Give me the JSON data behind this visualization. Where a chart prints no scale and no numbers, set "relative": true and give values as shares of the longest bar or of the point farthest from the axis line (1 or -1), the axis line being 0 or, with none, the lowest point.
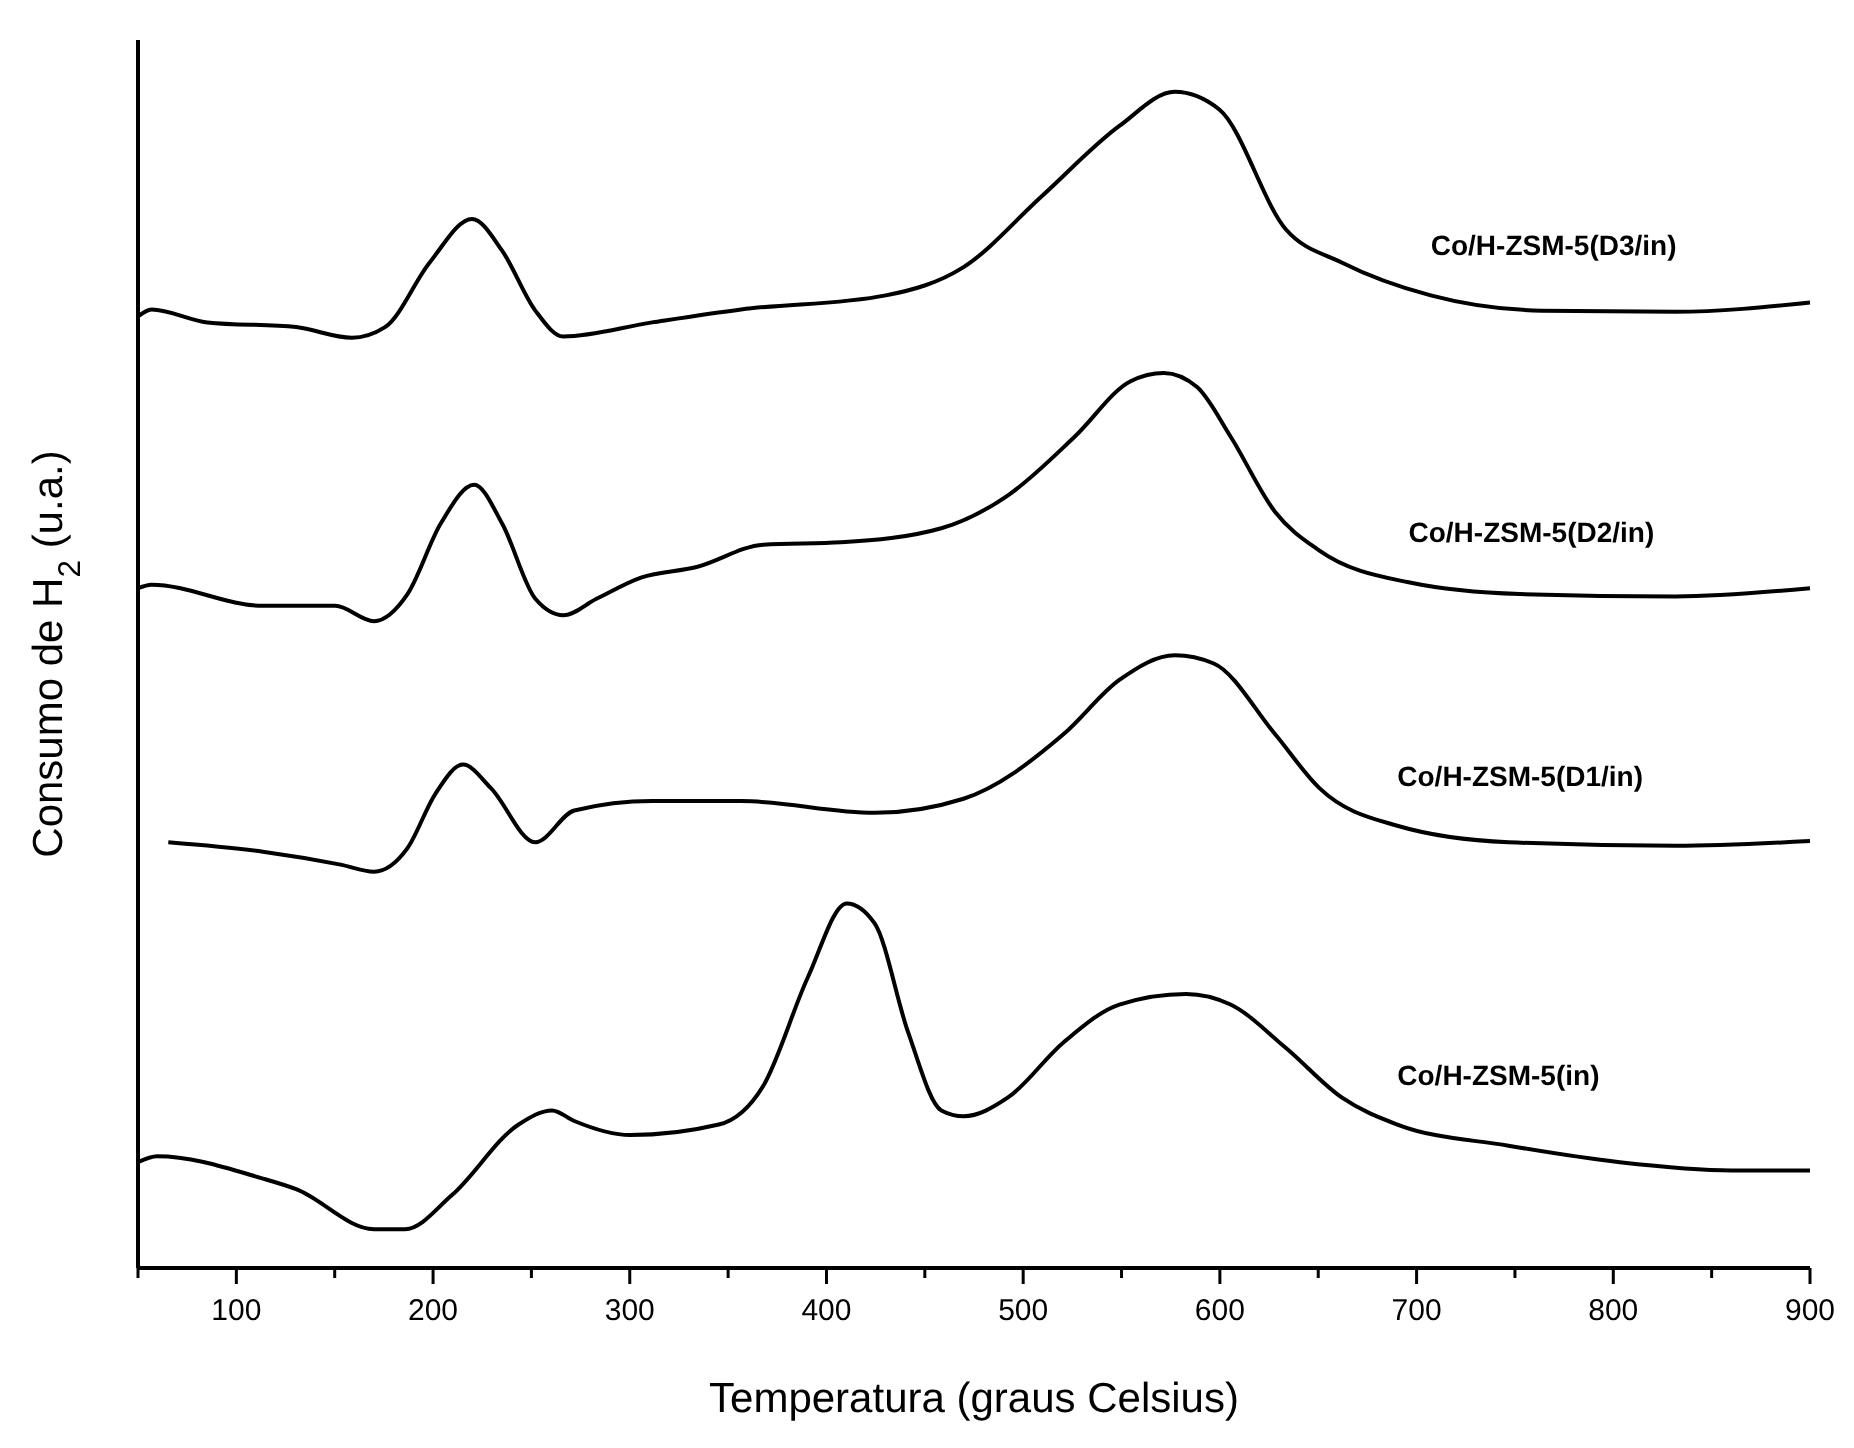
{
  "chart_data": {
    "type": "line",
    "relative": true,
    "xlabel": "Temperatura (graus Celsius)",
    "ylabel": "Consumo de H$_{2}$ (u.a.)",
    "xlim": [
      50,
      900
    ],
    "xticks": [
      {
        "value": 50,
        "label": null
      },
      100,
      {
        "value": 150,
        "label": null
      },
      200,
      {
        "value": 250,
        "label": null
      },
      300,
      {
        "value": 350,
        "label": null
      },
      400,
      {
        "value": 450,
        "label": null
      },
      500,
      {
        "value": 550,
        "label": null
      },
      600,
      {
        "value": 650,
        "label": null
      },
      700,
      {
        "value": 750,
        "label": null
      },
      800,
      {
        "value": 850,
        "label": null
      },
      900
    ],
    "series": [
      {
        "name": "Co/H-ZSM-5(D3/in)",
        "color": "#000000",
        "x": [
          50,
          56.9,
          85.2,
          130.4,
          158.7,
          175.6,
          198.3,
          219.8,
          235.1,
          252,
          266.2,
          311.4,
          356.6,
          430.2,
          469.7,
          509.3,
          548.9,
          577.1,
          599.7,
          633.6,
          661.9,
          707.2,
          763.7,
          831.6,
          900
        ],
        "values": [
          0.809,
          0.815,
          0.804,
          0.8,
          0.791,
          0.8,
          0.855,
          0.892,
          0.865,
          0.814,
          0.792,
          0.804,
          0.815,
          0.827,
          0.851,
          0.911,
          0.971,
          1,
          0.985,
          0.883,
          0.855,
          0.827,
          0.814,
          0.813,
          0.821
        ]
      },
      {
        "name": "Co/H-ZSM-5(D2/in)",
        "color": "#000000",
        "x": [
          50,
          56.9,
          113.5,
          150.2,
          170,
          187,
          203.9,
          220.9,
          235.1,
          252,
          266.2,
          283.1,
          305.7,
          334,
          367.9,
          407.5,
          458.4,
          492.3,
          526.3,
          554.6,
          571.5,
          588.4,
          605.4,
          628,
          650.6,
          695.9,
          752.4,
          831.6,
          900
        ],
        "values": [
          0.578,
          0.581,
          0.563,
          0.563,
          0.55,
          0.573,
          0.633,
          0.666,
          0.633,
          0.569,
          0.555,
          0.569,
          0.587,
          0.596,
          0.615,
          0.617,
          0.629,
          0.657,
          0.707,
          0.754,
          0.761,
          0.749,
          0.707,
          0.643,
          0.61,
          0.583,
          0.573,
          0.571,
          0.578
        ]
      },
      {
        "name": "Co/H-ZSM-5(D1/in)",
        "color": "#000000",
        "x": [
          65.4,
          113.5,
          153,
          170,
          187,
          201.1,
          215.2,
          229.4,
          252,
          271.8,
          311.4,
          356.6,
          424.5,
          469.7,
          520.6,
          548.9,
          577.1,
          596.9,
          628,
          650.6,
          690.2,
          746.7,
          831.6,
          900
        ],
        "values": [
          0.362,
          0.354,
          0.343,
          0.337,
          0.357,
          0.403,
          0.428,
          0.408,
          0.362,
          0.389,
          0.397,
          0.397,
          0.387,
          0.399,
          0.454,
          0.5,
          0.521,
          0.514,
          0.454,
          0.408,
          0.376,
          0.362,
          0.359,
          0.363
        ]
      },
      {
        "name": "Co/H-ZSM-5(in)",
        "color": "#000000",
        "x": [
          50,
          59.7,
          113.5,
          130.4,
          170,
          185.8,
          209.6,
          243.5,
          260.5,
          271.8,
          300.1,
          345.3,
          367.9,
          390.5,
          410.3,
          424.5,
          441.4,
          458.4,
          469.7,
          492.3,
          520.6,
          548.9,
          582.8,
          605.4,
          633.6,
          661.9,
          690.2,
          746.7,
          803.3,
          859.9,
          900
        ],
        "values": [
          0.09,
          0.095,
          0.076,
          0.067,
          0.033,
          0.033,
          0.062,
          0.122,
          0.134,
          0.125,
          0.113,
          0.122,
          0.155,
          0.247,
          0.31,
          0.293,
          0.201,
          0.134,
          0.129,
          0.145,
          0.192,
          0.224,
          0.233,
          0.224,
          0.187,
          0.145,
          0.122,
          0.104,
          0.09,
          0.083,
          0.083
        ]
      }
    ]
  }
}
